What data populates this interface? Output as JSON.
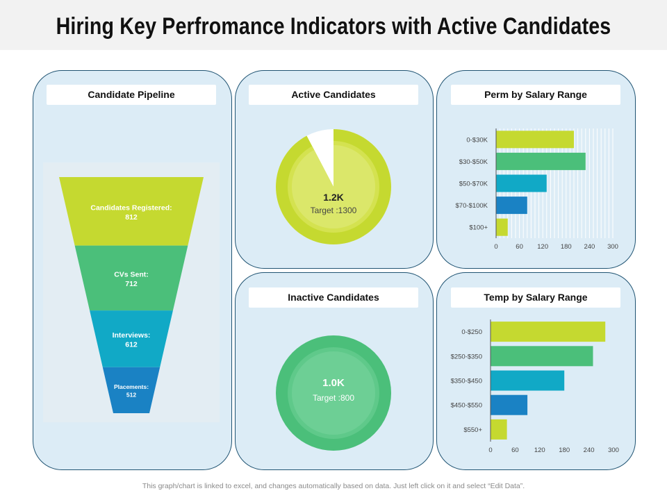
{
  "page": {
    "title": "Hiring Key Perfromance Indicators with Active Candidates",
    "footer": "This graph/chart is linked to excel, and changes automatically  based on data. Just left click on it and select “Edit Data”."
  },
  "panels": {
    "pipeline": {
      "header": "Candidate Pipeline"
    },
    "active": {
      "header": "Active Candidates",
      "value_label": "1.2K",
      "target_label": "Target :1300"
    },
    "inactive": {
      "header": "Inactive Candidates",
      "value_label": "1.0K",
      "target_label": "Target :800"
    },
    "perm": {
      "header": "Perm by Salary Range"
    },
    "temp": {
      "header": "Temp by Salary Range"
    }
  },
  "colors": {
    "lime": "#c5d930",
    "green": "#4bbf7a",
    "teal": "#11a9c6",
    "blue": "#1a82c4",
    "panel_bg": "#dcecf6",
    "panel_border": "#1f5372"
  },
  "chart_data": [
    {
      "type": "funnel",
      "title": "Candidate Pipeline",
      "stages": [
        {
          "name": "Candidates Registered:",
          "value": 812,
          "value_label": "812"
        },
        {
          "name": "CVs Sent:",
          "value": 712,
          "value_label": "712"
        },
        {
          "name": "Interviews:",
          "value": 612,
          "value_label": "612"
        },
        {
          "name": "Placements:",
          "value": 512,
          "value_label": "512"
        }
      ]
    },
    {
      "type": "pie",
      "title": "Active Candidates",
      "value": 1200,
      "target": 1300,
      "display": "1.2K",
      "target_label": "Target :1300"
    },
    {
      "type": "pie",
      "title": "Inactive Candidates",
      "value": 1000,
      "target": 800,
      "display": "1.0K",
      "target_label": "Target :800"
    },
    {
      "type": "bar",
      "orientation": "horizontal",
      "title": "Perm by Salary Range",
      "categories": [
        "0-$30K",
        "$30-$50K",
        "$50-$70K",
        "$70-$100K",
        "$100+"
      ],
      "values": [
        200,
        230,
        130,
        80,
        30
      ],
      "xlim": [
        0,
        300
      ],
      "xticks": [
        0,
        60,
        120,
        180,
        240,
        300
      ],
      "grid": true
    },
    {
      "type": "bar",
      "orientation": "horizontal",
      "title": "Temp by Salary Range",
      "categories": [
        "0-$250",
        "$250-$350",
        "$350-$450",
        "$450-$550",
        "$550+"
      ],
      "values": [
        280,
        250,
        180,
        90,
        40
      ],
      "xlim": [
        0,
        300
      ],
      "xticks": [
        0,
        60,
        120,
        180,
        240,
        300
      ],
      "grid": false
    }
  ]
}
